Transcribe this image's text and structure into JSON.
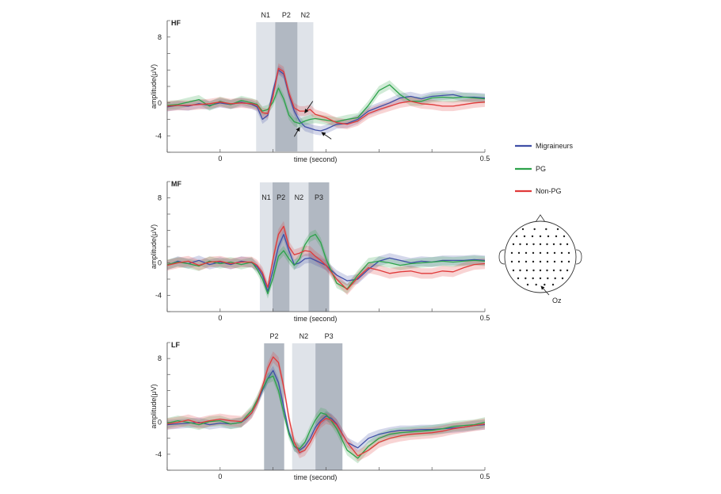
{
  "colors": {
    "migraineurs": "#3f4fa6",
    "pg": "#2ca24a",
    "nonpg": "#e03a3a",
    "window_light": "#dfe3e9",
    "window_dark": "#b1b8c2"
  },
  "legend": [
    {
      "key": "migraineurs",
      "label": "Migraineurs"
    },
    {
      "key": "pg",
      "label": "PG"
    },
    {
      "key": "nonpg",
      "label": "Non-PG"
    }
  ],
  "head_map": {
    "electrode_label": "Oz"
  },
  "chart_data": [
    {
      "type": "line",
      "panel_label": "HF",
      "xlabel": "time (second)",
      "ylabel": "amplitude(μV)",
      "xlim": [
        -0.1,
        0.5
      ],
      "ylim": [
        -6,
        10
      ],
      "x_ticks": [
        0,
        0.5
      ],
      "x_tick_labels": [
        "0",
        "0.5"
      ],
      "y_ticks": [
        8,
        0,
        -4
      ],
      "y_tick_labels": [
        "8",
        "0",
        "-4"
      ],
      "windows": [
        {
          "label": "N1",
          "start": 0.068,
          "end": 0.104,
          "shade": "light"
        },
        {
          "label": "P2",
          "start": 0.104,
          "end": 0.146,
          "shade": "dark"
        },
        {
          "label": "N2",
          "start": 0.146,
          "end": 0.176,
          "shade": "light"
        }
      ],
      "arrows": [
        {
          "tip": [
            0.16,
            -1.2
          ],
          "tail": [
            0.175,
            0.2
          ]
        },
        {
          "tip": [
            0.15,
            -3.0
          ],
          "tail": [
            0.14,
            -4.1
          ]
        },
        {
          "tip": [
            0.192,
            -3.6
          ],
          "tail": [
            0.21,
            -4.4
          ]
        }
      ],
      "series": [
        {
          "name": "Migraineurs",
          "key": "migraineurs",
          "x": [
            -0.1,
            -0.08,
            -0.06,
            -0.04,
            -0.02,
            0,
            0.02,
            0.04,
            0.06,
            0.07,
            0.08,
            0.09,
            0.1,
            0.11,
            0.12,
            0.13,
            0.14,
            0.15,
            0.16,
            0.17,
            0.18,
            0.19,
            0.2,
            0.22,
            0.24,
            0.26,
            0.28,
            0.3,
            0.32,
            0.34,
            0.36,
            0.38,
            0.4,
            0.42,
            0.44,
            0.46,
            0.48,
            0.5
          ],
          "y": [
            -0.5,
            -0.3,
            -0.4,
            -0.1,
            -0.3,
            0,
            -0.2,
            0.1,
            -0.2,
            -0.5,
            -2.0,
            -1.5,
            1.5,
            4.0,
            3.5,
            1.0,
            -1.0,
            -2.2,
            -2.9,
            -3.1,
            -3.3,
            -3.4,
            -3.2,
            -2.6,
            -2.5,
            -2.0,
            -1.0,
            -0.5,
            0,
            0.6,
            0.8,
            0.5,
            0.8,
            0.9,
            1.0,
            0.7,
            0.7,
            0.6
          ],
          "ci": 0.55
        },
        {
          "name": "PG",
          "key": "pg",
          "x": [
            -0.1,
            -0.08,
            -0.06,
            -0.04,
            -0.02,
            0,
            0.02,
            0.04,
            0.06,
            0.07,
            0.08,
            0.09,
            0.1,
            0.11,
            0.12,
            0.13,
            0.14,
            0.15,
            0.16,
            0.17,
            0.18,
            0.19,
            0.2,
            0.22,
            0.24,
            0.26,
            0.28,
            0.3,
            0.32,
            0.34,
            0.36,
            0.38,
            0.4,
            0.42,
            0.44,
            0.46,
            0.48,
            0.5
          ],
          "y": [
            -0.3,
            -0.2,
            0.1,
            0.4,
            -0.4,
            0.2,
            -0.2,
            0.3,
            0,
            -0.2,
            -1.0,
            -0.8,
            0.1,
            1.8,
            0.5,
            -1.5,
            -2.3,
            -2.5,
            -2.2,
            -2.0,
            -1.9,
            -2.0,
            -2.1,
            -2.3,
            -2.0,
            -1.8,
            -0.3,
            1.5,
            2.2,
            1.0,
            0.2,
            0.2,
            0.6,
            0.7,
            0.6,
            0.7,
            0.6,
            0.5
          ],
          "ci": 0.55
        },
        {
          "name": "Non-PG",
          "key": "nonpg",
          "x": [
            -0.1,
            -0.08,
            -0.06,
            -0.04,
            -0.02,
            0,
            0.02,
            0.04,
            0.06,
            0.07,
            0.08,
            0.09,
            0.1,
            0.11,
            0.12,
            0.13,
            0.14,
            0.15,
            0.16,
            0.17,
            0.18,
            0.19,
            0.2,
            0.22,
            0.24,
            0.26,
            0.28,
            0.3,
            0.32,
            0.34,
            0.36,
            0.38,
            0.4,
            0.42,
            0.44,
            0.46,
            0.48,
            0.5
          ],
          "y": [
            -0.4,
            -0.3,
            -0.3,
            -0.2,
            -0.1,
            0.1,
            -0.1,
            0,
            -0.1,
            -0.3,
            -1.2,
            -1.3,
            0.8,
            4.2,
            3.8,
            1.2,
            -0.6,
            -1.0,
            -1.0,
            -0.8,
            -1.4,
            -1.6,
            -1.8,
            -2.4,
            -2.6,
            -2.2,
            -1.3,
            -0.8,
            -0.4,
            0,
            0.2,
            -0.1,
            -0.2,
            -0.4,
            -0.4,
            -0.2,
            0,
            0.1
          ],
          "ci": 0.6
        }
      ]
    },
    {
      "type": "line",
      "panel_label": "MF",
      "xlabel": "time (second)",
      "ylabel": "amplitude(μV)",
      "xlim": [
        -0.1,
        0.5
      ],
      "ylim": [
        -6,
        10
      ],
      "x_ticks": [
        0,
        0.5
      ],
      "x_tick_labels": [
        "0",
        "0.5"
      ],
      "y_ticks": [
        8,
        0,
        -4
      ],
      "y_tick_labels": [
        "8",
        "0",
        "-4"
      ],
      "windows": [
        {
          "label": "N1",
          "start": 0.075,
          "end": 0.099,
          "shade": "light"
        },
        {
          "label": "P2",
          "start": 0.099,
          "end": 0.131,
          "shade": "dark"
        },
        {
          "label": "N2",
          "start": 0.131,
          "end": 0.167,
          "shade": "light"
        },
        {
          "label": "P3",
          "start": 0.167,
          "end": 0.206,
          "shade": "dark"
        }
      ],
      "arrows": [],
      "series": [
        {
          "name": "Migraineurs",
          "key": "migraineurs",
          "x": [
            -0.1,
            -0.08,
            -0.06,
            -0.04,
            -0.02,
            0,
            0.02,
            0.04,
            0.06,
            0.07,
            0.08,
            0.09,
            0.1,
            0.11,
            0.12,
            0.13,
            0.14,
            0.15,
            0.16,
            0.17,
            0.18,
            0.19,
            0.2,
            0.22,
            0.24,
            0.26,
            0.28,
            0.3,
            0.32,
            0.34,
            0.36,
            0.38,
            0.4,
            0.42,
            0.44,
            0.46,
            0.48,
            0.5
          ],
          "y": [
            -0.3,
            0.2,
            -0.1,
            0.3,
            -0.2,
            0.1,
            -0.2,
            0.2,
            0,
            -0.5,
            -1.5,
            -3.5,
            -0.8,
            2.0,
            3.5,
            1.5,
            -0.2,
            0,
            0.5,
            0.6,
            0.3,
            0,
            -0.3,
            -1.5,
            -2.2,
            -2.0,
            -0.8,
            0.2,
            0.6,
            0.3,
            0,
            0.2,
            0.1,
            0.3,
            0.3,
            0.3,
            0.4,
            0.3
          ],
          "ci": 0.6
        },
        {
          "name": "PG",
          "key": "pg",
          "x": [
            -0.1,
            -0.08,
            -0.06,
            -0.04,
            -0.02,
            0,
            0.02,
            0.04,
            0.06,
            0.07,
            0.08,
            0.09,
            0.1,
            0.11,
            0.12,
            0.13,
            0.14,
            0.15,
            0.16,
            0.17,
            0.18,
            0.19,
            0.2,
            0.22,
            0.24,
            0.26,
            0.28,
            0.3,
            0.32,
            0.34,
            0.36,
            0.38,
            0.4,
            0.42,
            0.44,
            0.46,
            0.48,
            0.5
          ],
          "y": [
            -0.2,
            0.1,
            -0.1,
            -0.4,
            0.2,
            -0.1,
            0.1,
            -0.2,
            0.1,
            -0.8,
            -2.0,
            -3.8,
            -1.8,
            0.8,
            1.5,
            0.5,
            -0.3,
            0.5,
            2.2,
            3.2,
            3.5,
            2.5,
            0.5,
            -2.5,
            -3.2,
            -1.5,
            0,
            0.2,
            0,
            -0.3,
            -0.1,
            0,
            0.1,
            0.2,
            0.1,
            0.2,
            0.3,
            0.2
          ],
          "ci": 0.6
        },
        {
          "name": "Non-PG",
          "key": "nonpg",
          "x": [
            -0.1,
            -0.08,
            -0.06,
            -0.04,
            -0.02,
            0,
            0.02,
            0.04,
            0.06,
            0.07,
            0.08,
            0.09,
            0.1,
            0.11,
            0.12,
            0.13,
            0.14,
            0.15,
            0.16,
            0.17,
            0.18,
            0.19,
            0.2,
            0.22,
            0.24,
            0.26,
            0.28,
            0.3,
            0.32,
            0.34,
            0.36,
            0.38,
            0.4,
            0.42,
            0.44,
            0.46,
            0.48,
            0.5
          ],
          "y": [
            -0.3,
            0,
            0.2,
            -0.3,
            0.1,
            0.2,
            -0.1,
            0.1,
            0.1,
            -0.3,
            -1.2,
            -3.0,
            0.5,
            3.5,
            4.5,
            2.0,
            1.0,
            1.2,
            1.5,
            1.4,
            0.8,
            0.3,
            -0.3,
            -2.0,
            -3.3,
            -1.8,
            -0.6,
            -0.9,
            -1.3,
            -1.1,
            -1.0,
            -1.3,
            -1.3,
            -1.0,
            -1.1,
            -0.6,
            -0.2,
            -0.1
          ],
          "ci": 0.65
        }
      ]
    },
    {
      "type": "line",
      "panel_label": "LF",
      "xlabel": "time (second)",
      "ylabel": "amplitude(μV)",
      "xlim": [
        -0.1,
        0.5
      ],
      "ylim": [
        -6,
        10
      ],
      "x_ticks": [
        0,
        0.5
      ],
      "x_tick_labels": [
        "0",
        "0.5"
      ],
      "y_ticks": [
        8,
        0,
        -4
      ],
      "y_tick_labels": [
        "8",
        "0",
        "-4"
      ],
      "windows": [
        {
          "label": "P2",
          "start": 0.083,
          "end": 0.121,
          "shade": "dark"
        },
        {
          "label": "N2",
          "start": 0.136,
          "end": 0.18,
          "shade": "light"
        },
        {
          "label": "P3",
          "start": 0.18,
          "end": 0.231,
          "shade": "dark"
        }
      ],
      "arrows": [],
      "series": [
        {
          "name": "Migraineurs",
          "key": "migraineurs",
          "x": [
            -0.1,
            -0.08,
            -0.06,
            -0.04,
            -0.02,
            0,
            0.02,
            0.04,
            0.05,
            0.06,
            0.07,
            0.08,
            0.09,
            0.1,
            0.11,
            0.12,
            0.13,
            0.14,
            0.15,
            0.16,
            0.17,
            0.18,
            0.19,
            0.2,
            0.21,
            0.22,
            0.24,
            0.26,
            0.28,
            0.3,
            0.32,
            0.34,
            0.36,
            0.38,
            0.4,
            0.42,
            0.44,
            0.46,
            0.48,
            0.5
          ],
          "y": [
            -0.3,
            -0.2,
            -0.1,
            0,
            -0.3,
            -0.1,
            -0.2,
            0,
            0.5,
            1.2,
            2.5,
            4.0,
            5.5,
            6.5,
            5.0,
            2.0,
            -1.2,
            -3.0,
            -3.5,
            -3.0,
            -2.0,
            -0.6,
            0.2,
            0.8,
            0.5,
            -0.2,
            -2.5,
            -3.2,
            -2.0,
            -1.5,
            -1.2,
            -1.0,
            -1.0,
            -0.9,
            -0.9,
            -0.8,
            -0.7,
            -0.6,
            -0.4,
            -0.3
          ],
          "ci": 0.6
        },
        {
          "name": "PG",
          "key": "pg",
          "x": [
            -0.1,
            -0.08,
            -0.06,
            -0.04,
            -0.02,
            0,
            0.02,
            0.04,
            0.05,
            0.06,
            0.07,
            0.08,
            0.09,
            0.1,
            0.11,
            0.12,
            0.13,
            0.14,
            0.15,
            0.16,
            0.17,
            0.18,
            0.19,
            0.2,
            0.21,
            0.22,
            0.24,
            0.26,
            0.28,
            0.3,
            0.32,
            0.34,
            0.36,
            0.38,
            0.4,
            0.42,
            0.44,
            0.46,
            0.48,
            0.5
          ],
          "y": [
            -0.1,
            0.2,
            0,
            -0.3,
            0.1,
            0.2,
            -0.2,
            0,
            0.8,
            1.5,
            2.8,
            4.2,
            5.5,
            5.8,
            4.0,
            1.2,
            -1.5,
            -3.0,
            -3.3,
            -2.5,
            -1.0,
            0.3,
            1.2,
            1.0,
            0.2,
            -0.8,
            -3.5,
            -4.5,
            -3.0,
            -2.0,
            -1.5,
            -1.3,
            -1.2,
            -1.1,
            -1.0,
            -0.8,
            -0.5,
            -0.4,
            -0.3,
            0
          ],
          "ci": 0.65
        },
        {
          "name": "Non-PG",
          "key": "nonpg",
          "x": [
            -0.1,
            -0.08,
            -0.06,
            -0.04,
            -0.02,
            0,
            0.02,
            0.04,
            0.05,
            0.06,
            0.07,
            0.08,
            0.09,
            0.1,
            0.11,
            0.12,
            0.13,
            0.14,
            0.15,
            0.16,
            0.17,
            0.18,
            0.19,
            0.2,
            0.21,
            0.22,
            0.24,
            0.26,
            0.28,
            0.3,
            0.32,
            0.34,
            0.36,
            0.38,
            0.4,
            0.42,
            0.44,
            0.46,
            0.48,
            0.5
          ],
          "y": [
            -0.2,
            0,
            0.3,
            -0.1,
            0.2,
            0.4,
            0.2,
            0.1,
            0.6,
            1.2,
            2.5,
            4.5,
            6.8,
            8.2,
            7.5,
            4.5,
            0.5,
            -2.5,
            -3.8,
            -3.5,
            -2.5,
            -1.2,
            0,
            0.5,
            0.3,
            -0.3,
            -2.5,
            -4.2,
            -3.5,
            -2.5,
            -2.0,
            -1.7,
            -1.5,
            -1.4,
            -1.3,
            -1.1,
            -0.8,
            -0.6,
            -0.4,
            -0.2
          ],
          "ci": 0.7
        }
      ]
    }
  ]
}
